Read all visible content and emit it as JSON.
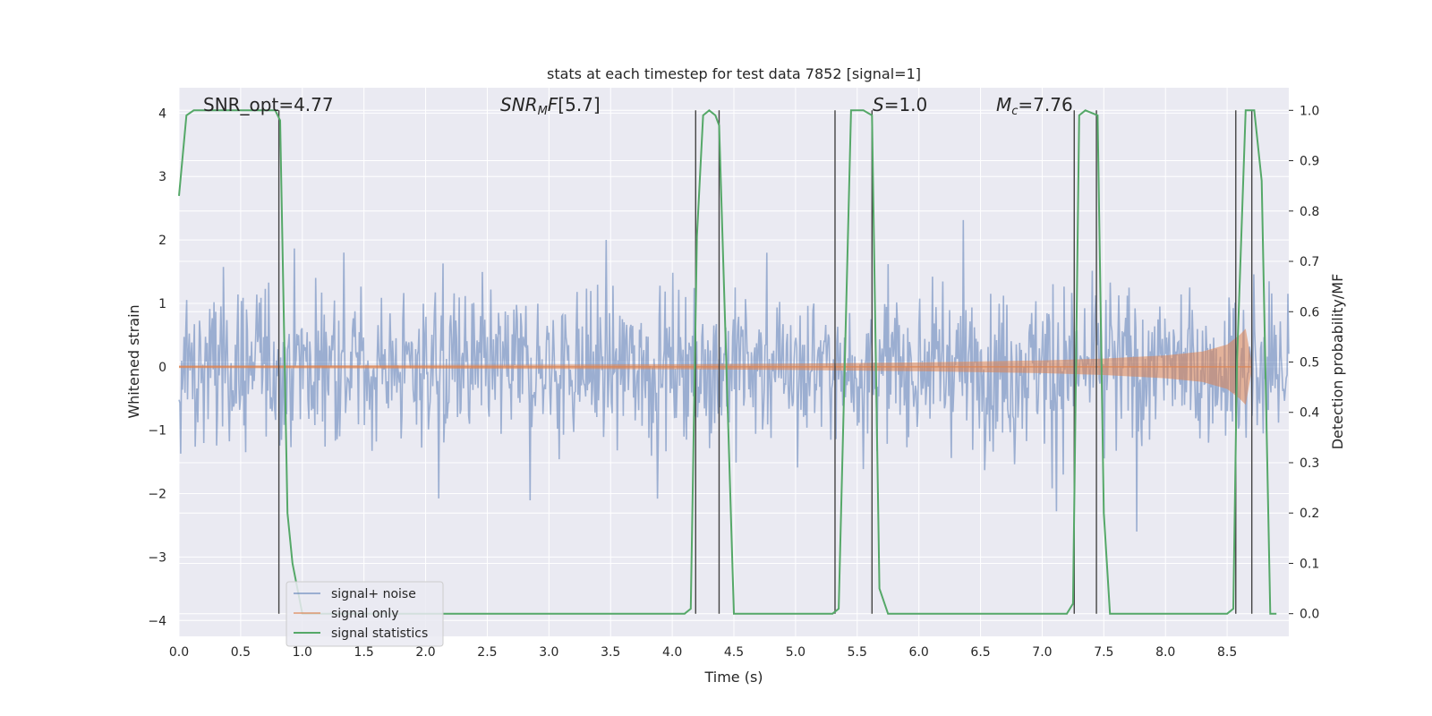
{
  "chart_data": {
    "type": "line",
    "title": "stats at each timestep for test data 7852 [signal=1]",
    "xlabel": "Time (s)",
    "ylabel": "Whitened strain",
    "y2label": "Detection probability/MF",
    "xlim": [
      0.0,
      9.0
    ],
    "ylim": [
      -4.25,
      4.4
    ],
    "y2lim": [
      -0.045,
      1.045
    ],
    "x_ticks": [
      "0.0",
      "0.5",
      "1.0",
      "1.5",
      "2.0",
      "2.5",
      "3.0",
      "3.5",
      "4.0",
      "4.5",
      "5.0",
      "5.5",
      "6.0",
      "6.5",
      "7.0",
      "7.5",
      "8.0",
      "8.5"
    ],
    "y_ticks": [
      "4",
      "3",
      "2",
      "1",
      "0",
      "−1",
      "−2",
      "−3",
      "−4"
    ],
    "y2_ticks": [
      "1.0",
      "0.9",
      "0.8",
      "0.7",
      "0.6",
      "0.5",
      "0.4",
      "0.3",
      "0.2",
      "0.1",
      "0.0"
    ],
    "grid": true,
    "legend_position": "lower-left",
    "annotations": {
      "snr_opt": "SNR_opt=4.77",
      "snr_mf": "[5.7]",
      "s_value": "=1.0",
      "mc_value": "=7.76"
    },
    "series": [
      {
        "name": "signal+ noise",
        "color": "#4c72b0",
        "opacity": 0.5,
        "description_axis": "left",
        "amplitude_typical": 2.2,
        "amplitude_peak": 3.9
      },
      {
        "name": "signal only",
        "color": "#dd8452",
        "description_axis": "left",
        "envelope": {
          "x": [
            0.0,
            2.0,
            4.0,
            5.0,
            6.0,
            7.0,
            7.5,
            8.0,
            8.3,
            8.5,
            8.6,
            8.65,
            8.7
          ],
          "amplitude": [
            0.02,
            0.03,
            0.04,
            0.05,
            0.07,
            0.1,
            0.13,
            0.18,
            0.24,
            0.35,
            0.5,
            0.6,
            0.05
          ]
        }
      },
      {
        "name": "signal statistics",
        "color": "#55a868",
        "description_axis": "right",
        "x": [
          0.0,
          0.06,
          0.12,
          0.78,
          0.82,
          0.88,
          0.92,
          1.0,
          4.1,
          4.15,
          4.2,
          4.25,
          4.3,
          4.35,
          4.38,
          4.5,
          5.3,
          5.35,
          5.45,
          5.55,
          5.62,
          5.68,
          5.75,
          7.2,
          7.25,
          7.3,
          7.35,
          7.45,
          7.5,
          7.55,
          8.5,
          8.55,
          8.58,
          8.65,
          8.72,
          8.78,
          8.85,
          8.9
        ],
        "y": [
          0.83,
          0.99,
          1.0,
          1.0,
          0.98,
          0.2,
          0.1,
          0.0,
          0.0,
          0.01,
          0.75,
          0.99,
          1.0,
          0.99,
          0.97,
          0.0,
          0.0,
          0.01,
          1.0,
          1.0,
          0.99,
          0.05,
          0.0,
          0.0,
          0.02,
          0.99,
          1.0,
          0.99,
          0.2,
          0.0,
          0.0,
          0.01,
          0.5,
          1.0,
          1.0,
          0.86,
          0.0,
          0.0
        ]
      }
    ],
    "vertical_lines": [
      0.81,
      4.19,
      4.38,
      5.32,
      5.62,
      7.26,
      7.44,
      8.57,
      8.7
    ]
  },
  "legend": {
    "items": [
      "signal+ noise",
      "signal only",
      "signal statistics"
    ]
  }
}
